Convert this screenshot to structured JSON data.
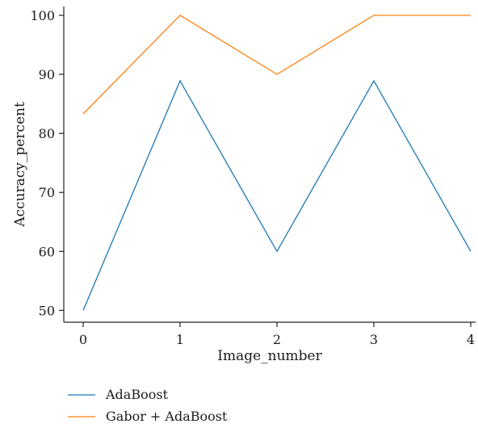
{
  "chart_data": {
    "type": "line",
    "title": "",
    "xlabel": "Image_number",
    "ylabel": "Accuracy_percent",
    "x": [
      0,
      1,
      2,
      3,
      4
    ],
    "xticks": [
      "0",
      "1",
      "2",
      "3",
      "4"
    ],
    "yticks": [
      "50",
      "60",
      "70",
      "80",
      "90",
      "100"
    ],
    "xlim": [
      -0.2,
      4.05
    ],
    "ylim": [
      48,
      101.5
    ],
    "grid": false,
    "legend": "bottom-left",
    "series": [
      {
        "name": "AdaBoost",
        "values": [
          50,
          88.9,
          60,
          88.9,
          60
        ],
        "color": "#1f77b4"
      },
      {
        "name": "Gabor + AdaBoost",
        "values": [
          83.3,
          100,
          90,
          100,
          100
        ],
        "color": "#ff7f0e"
      }
    ]
  }
}
